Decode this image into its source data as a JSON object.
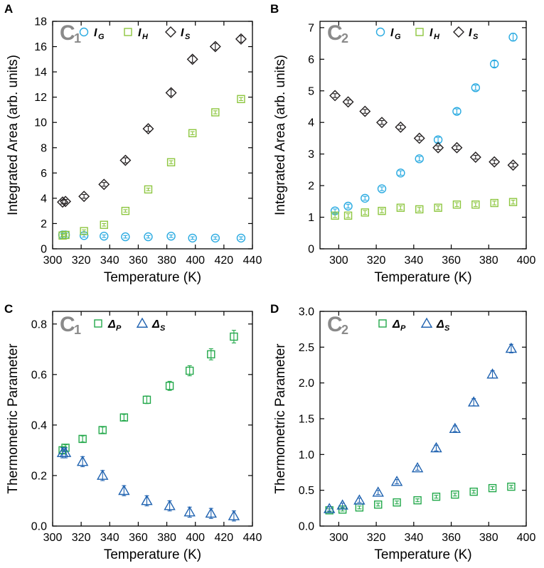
{
  "figure": {
    "panels": [
      "A",
      "B",
      "C",
      "D"
    ]
  },
  "chart_data": [
    {
      "panel": "A",
      "type": "scatter",
      "tag": "C",
      "tag_sub": "1",
      "xlabel": "Temperature (K)",
      "ylabel": "Integrated Area (arb. units)",
      "xlim": [
        300,
        440
      ],
      "ylim": [
        0,
        18
      ],
      "xticks": [
        300,
        320,
        340,
        360,
        380,
        400,
        420,
        440
      ],
      "yticks": [
        0,
        2,
        4,
        6,
        8,
        10,
        12,
        14,
        16,
        18
      ],
      "legend_position": "top",
      "series": [
        {
          "name": "I",
          "sub": "G",
          "marker": "circle",
          "color": "#29aae1",
          "x": [
            307,
            309,
            322,
            336,
            351,
            367,
            383,
            398,
            414,
            432
          ],
          "y": [
            1.1,
            1.1,
            1.05,
            1.0,
            0.95,
            0.95,
            1.0,
            0.85,
            0.85,
            0.85
          ],
          "err": [
            0.12,
            0.12,
            0.12,
            0.1,
            0.1,
            0.1,
            0.1,
            0.1,
            0.1,
            0.1
          ]
        },
        {
          "name": "I",
          "sub": "H",
          "marker": "square",
          "color": "#8dc63f",
          "x": [
            307,
            309,
            322,
            336,
            351,
            367,
            383,
            398,
            414,
            432
          ],
          "y": [
            1.05,
            1.1,
            1.4,
            1.9,
            3.0,
            4.7,
            6.85,
            9.15,
            10.8,
            11.85
          ],
          "err": [
            0.1,
            0.1,
            0.1,
            0.1,
            0.1,
            0.1,
            0.12,
            0.12,
            0.12,
            0.12
          ]
        },
        {
          "name": "I",
          "sub": "S",
          "marker": "diamond",
          "color": "#231f20",
          "x": [
            307,
            309,
            322,
            336,
            351,
            367,
            383,
            398,
            414,
            432
          ],
          "y": [
            3.7,
            3.75,
            4.15,
            5.1,
            7.0,
            9.5,
            12.35,
            15.0,
            16.0,
            16.6
          ],
          "err": [
            0.15,
            0.15,
            0.15,
            0.15,
            0.2,
            0.2,
            0.25,
            0.25,
            0.25,
            0.25
          ]
        }
      ]
    },
    {
      "panel": "B",
      "type": "scatter",
      "tag": "C",
      "tag_sub": "2",
      "xlabel": "Temperature (K)",
      "ylabel": "Integrated Area (arb. units)",
      "xlim": [
        290,
        400
      ],
      "ylim": [
        0,
        7.2
      ],
      "xticks": [
        300,
        320,
        340,
        360,
        380,
        400
      ],
      "yticks": [
        0,
        1,
        2,
        3,
        4,
        5,
        6,
        7
      ],
      "legend_position": "top",
      "series": [
        {
          "name": "I",
          "sub": "G",
          "marker": "circle",
          "color": "#29aae1",
          "x": [
            298,
            305,
            314,
            323,
            333,
            343,
            353,
            363,
            373,
            383,
            393
          ],
          "y": [
            1.2,
            1.35,
            1.6,
            1.9,
            2.4,
            2.85,
            3.45,
            4.35,
            5.1,
            5.85,
            6.7
          ],
          "err": [
            0.06,
            0.06,
            0.06,
            0.06,
            0.07,
            0.07,
            0.08,
            0.08,
            0.08,
            0.1,
            0.12
          ]
        },
        {
          "name": "I",
          "sub": "H",
          "marker": "square",
          "color": "#8dc63f",
          "x": [
            298,
            305,
            314,
            323,
            333,
            343,
            353,
            363,
            373,
            383,
            393
          ],
          "y": [
            1.05,
            1.05,
            1.15,
            1.2,
            1.3,
            1.25,
            1.3,
            1.4,
            1.4,
            1.45,
            1.48
          ],
          "err": [
            0.06,
            0.06,
            0.06,
            0.06,
            0.06,
            0.06,
            0.06,
            0.06,
            0.06,
            0.06,
            0.06
          ]
        },
        {
          "name": "I",
          "sub": "S",
          "marker": "diamond",
          "color": "#231f20",
          "x": [
            298,
            305,
            314,
            323,
            333,
            343,
            353,
            363,
            373,
            383,
            393
          ],
          "y": [
            4.85,
            4.65,
            4.35,
            4.0,
            3.85,
            3.5,
            3.2,
            3.2,
            2.9,
            2.75,
            2.65
          ],
          "err": [
            0.06,
            0.06,
            0.06,
            0.06,
            0.06,
            0.06,
            0.06,
            0.06,
            0.06,
            0.06,
            0.06
          ]
        }
      ]
    },
    {
      "panel": "C",
      "type": "scatter",
      "tag": "C",
      "tag_sub": "1",
      "xlabel": "Temperature (K)",
      "ylabel": "Thermometric Parameter",
      "xlim": [
        300,
        440
      ],
      "ylim": [
        0,
        0.85
      ],
      "xticks": [
        300,
        320,
        340,
        360,
        380,
        400,
        420,
        440
      ],
      "yticks": [
        0.0,
        0.2,
        0.4,
        0.6,
        0.8
      ],
      "ytick_labels": [
        "0.0",
        "0.2",
        "0.4",
        "0.6",
        "0.8"
      ],
      "legend_position": "top",
      "series": [
        {
          "name": "Δ",
          "sub": "P",
          "marker": "square",
          "color": "#22a84a",
          "x": [
            307,
            309,
            321,
            335,
            350,
            366,
            382,
            396,
            411,
            427
          ],
          "y": [
            0.3,
            0.31,
            0.345,
            0.38,
            0.43,
            0.5,
            0.555,
            0.615,
            0.68,
            0.75
          ],
          "err": [
            0.012,
            0.012,
            0.012,
            0.012,
            0.012,
            0.015,
            0.018,
            0.02,
            0.022,
            0.025
          ]
        },
        {
          "name": "Δ",
          "sub": "S",
          "marker": "triangle",
          "color": "#1f62b0",
          "x": [
            307,
            309,
            321,
            335,
            350,
            366,
            382,
            396,
            411,
            427
          ],
          "y": [
            0.29,
            0.29,
            0.255,
            0.2,
            0.14,
            0.1,
            0.08,
            0.055,
            0.05,
            0.04
          ],
          "err": [
            0.02,
            0.02,
            0.02,
            0.02,
            0.02,
            0.02,
            0.02,
            0.02,
            0.02,
            0.02
          ]
        }
      ]
    },
    {
      "panel": "D",
      "type": "scatter",
      "tag": "C",
      "tag_sub": "2",
      "xlabel": "Temperature (K)",
      "ylabel": "Thermometric Parameter",
      "xlim": [
        290,
        400
      ],
      "ylim": [
        0,
        3.0
      ],
      "xticks": [
        300,
        320,
        340,
        360,
        380,
        400
      ],
      "yticks": [
        0.0,
        0.5,
        1.0,
        1.5,
        2.0,
        2.5,
        3.0
      ],
      "ytick_labels": [
        "0.0",
        "0.5",
        "1.0",
        "1.5",
        "2.0",
        "2.5",
        "3.0"
      ],
      "legend_position": "top",
      "series": [
        {
          "name": "Δ",
          "sub": "P",
          "marker": "square",
          "color": "#22a84a",
          "x": [
            295,
            302,
            311,
            321,
            331,
            342,
            352,
            362,
            372,
            382,
            392
          ],
          "y": [
            0.22,
            0.23,
            0.26,
            0.3,
            0.33,
            0.36,
            0.41,
            0.44,
            0.48,
            0.53,
            0.55
          ],
          "err": [
            0.02,
            0.02,
            0.02,
            0.02,
            0.02,
            0.02,
            0.02,
            0.02,
            0.02,
            0.02,
            0.02
          ]
        },
        {
          "name": "Δ",
          "sub": "S",
          "marker": "triangle",
          "color": "#1f62b0",
          "x": [
            295,
            302,
            311,
            321,
            331,
            342,
            352,
            362,
            372,
            382,
            392
          ],
          "y": [
            0.24,
            0.29,
            0.36,
            0.47,
            0.62,
            0.81,
            1.09,
            1.36,
            1.73,
            2.12,
            2.48
          ],
          "err": [
            0.03,
            0.03,
            0.03,
            0.03,
            0.03,
            0.03,
            0.04,
            0.04,
            0.05,
            0.05,
            0.06
          ]
        }
      ]
    }
  ]
}
